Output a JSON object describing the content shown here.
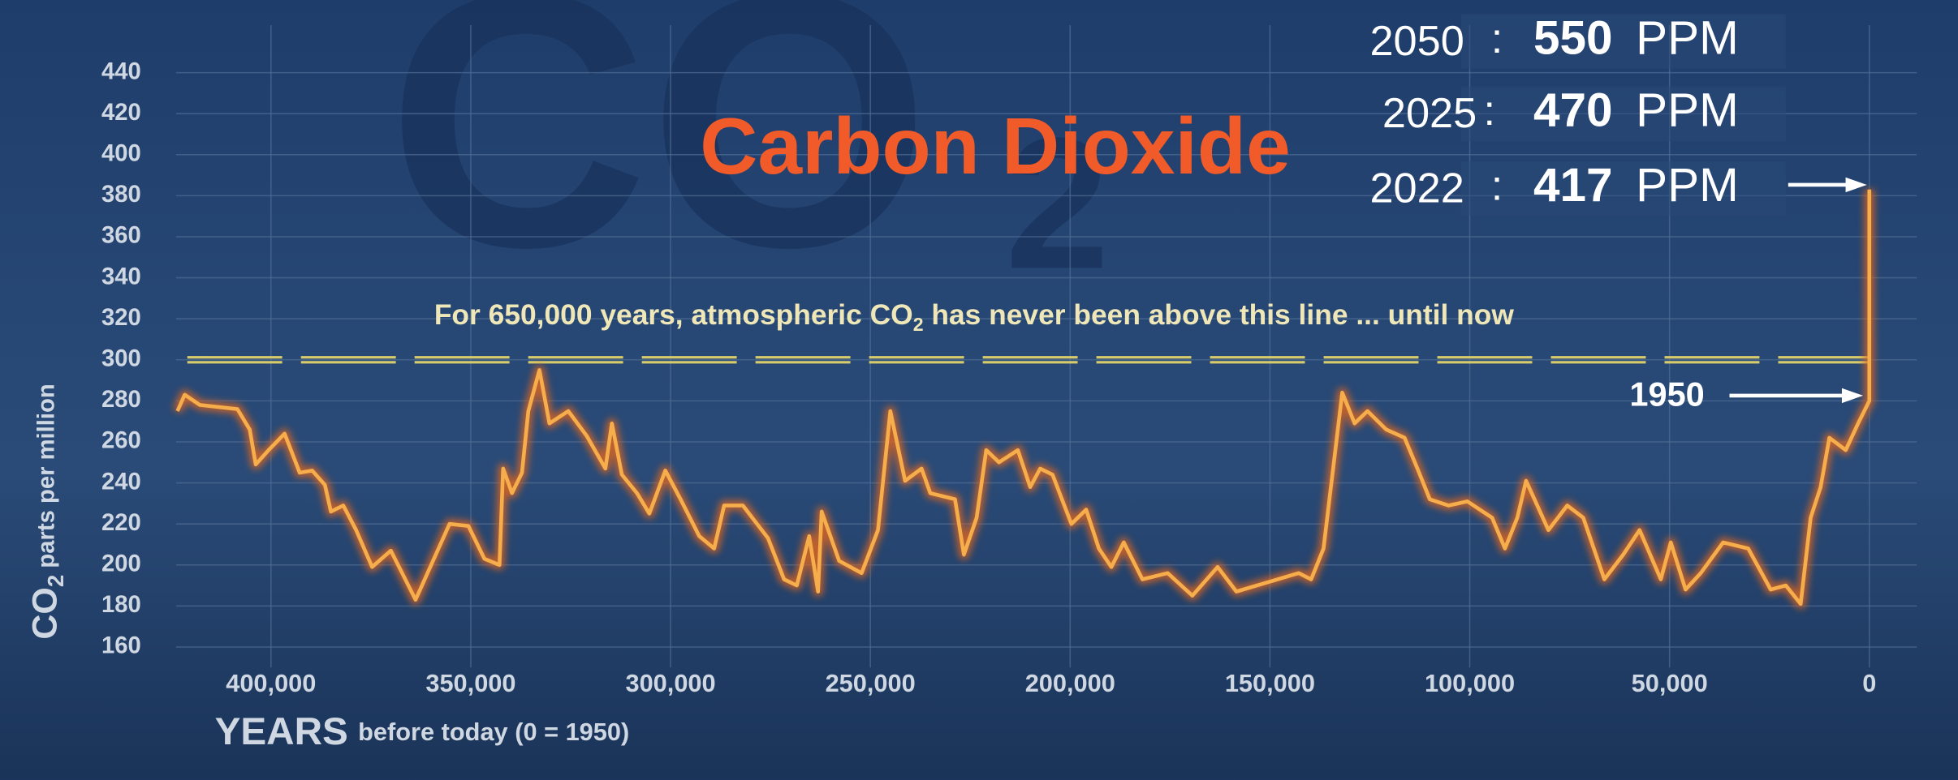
{
  "chart_data": {
    "type": "line",
    "title": "Carbon Dioxide",
    "watermark": [
      "CO",
      "2"
    ],
    "ylabel": [
      "CO",
      "2",
      " parts per million"
    ],
    "xlabel": [
      "YEARS",
      "before today (0 = 1950)"
    ],
    "annotation": {
      "text": [
        "For 650,000 years, atmospheric CO",
        "2",
        " has never been above this line ... until now"
      ],
      "threshold": 300,
      "color": "#d8cc6a"
    },
    "marker_label": "1950",
    "projections": [
      {
        "year": "2050",
        "sep": ":",
        "value": "550",
        "unit": "PPM"
      },
      {
        "year": "2025",
        "sep": ":",
        "value": "470",
        "unit": "PPM"
      },
      {
        "year": "2022",
        "sep": ":",
        "value": "417",
        "unit": "PPM"
      }
    ],
    "xlim": [
      423750,
      0
    ],
    "ylim": [
      150,
      450
    ],
    "xticks": [
      {
        "value": 400000,
        "label": "400,000"
      },
      {
        "value": 350000,
        "label": "350,000"
      },
      {
        "value": 300000,
        "label": "300,000"
      },
      {
        "value": 250000,
        "label": "250,000"
      },
      {
        "value": 200000,
        "label": "200,000"
      },
      {
        "value": 150000,
        "label": "150,000"
      },
      {
        "value": 100000,
        "label": "100,000"
      },
      {
        "value": 50000,
        "label": "50,000"
      },
      0
    ],
    "yticks": [
      160,
      180,
      200,
      220,
      240,
      260,
      280,
      300,
      320,
      340,
      360,
      380,
      400,
      420,
      440
    ],
    "grid": true,
    "color": "#f6ad4c",
    "x": [
      423400,
      421600,
      417800,
      408400,
      405300,
      403800,
      400600,
      396600,
      392800,
      389700,
      386500,
      385000,
      381900,
      378700,
      374700,
      370000,
      363800,
      355300,
      350600,
      346600,
      342800,
      341900,
      339700,
      337200,
      335600,
      332800,
      330300,
      325600,
      321000,
      316300,
      314700,
      312200,
      308400,
      305300,
      301300,
      297500,
      292800,
      289100,
      286600,
      281900,
      275600,
      271600,
      268400,
      265300,
      263100,
      262200,
      257800,
      252200,
      248100,
      245000,
      241300,
      237200,
      235000,
      228800,
      226600,
      223400,
      221000,
      217800,
      213100,
      210000,
      207500,
      204400,
      199700,
      196000,
      192800,
      189700,
      186600,
      181900,
      175600,
      169400,
      163100,
      158400,
      142800,
      139700,
      136600,
      131900,
      128800,
      125600,
      120900,
      116300,
      113100,
      110000,
      105300,
      100600,
      94400,
      91200,
      88100,
      85900,
      80300,
      75600,
      71600,
      66300,
      61600,
      57500,
      52200,
      49700,
      46000,
      42200,
      36600,
      30300,
      24700,
      20900,
      17200,
      14700,
      12200,
      10000,
      5900,
      2800,
      0,
      0
    ],
    "values": [
      275,
      283,
      278,
      276,
      266,
      249,
      256,
      264,
      245,
      246,
      239,
      226,
      229,
      217,
      199,
      207,
      183,
      220,
      219,
      203,
      200,
      247,
      235,
      245,
      275,
      295,
      269,
      275,
      263,
      247,
      269,
      244,
      235,
      225,
      246,
      232,
      214,
      208,
      229,
      229,
      213,
      193,
      190,
      214,
      187,
      226,
      202,
      196,
      217,
      275,
      241,
      247,
      235,
      232,
      205,
      223,
      256,
      250,
      256,
      238,
      247,
      244,
      220,
      227,
      208,
      199,
      211,
      193,
      196,
      185,
      199,
      187,
      196,
      193,
      208,
      284,
      269,
      275,
      266,
      262,
      247,
      232,
      229,
      231,
      223,
      208,
      223,
      241,
      217,
      229,
      223,
      193,
      205,
      217,
      193,
      211,
      188,
      196,
      211,
      208,
      188,
      190,
      181,
      223,
      238,
      262,
      256,
      269,
      280,
      383
    ]
  }
}
